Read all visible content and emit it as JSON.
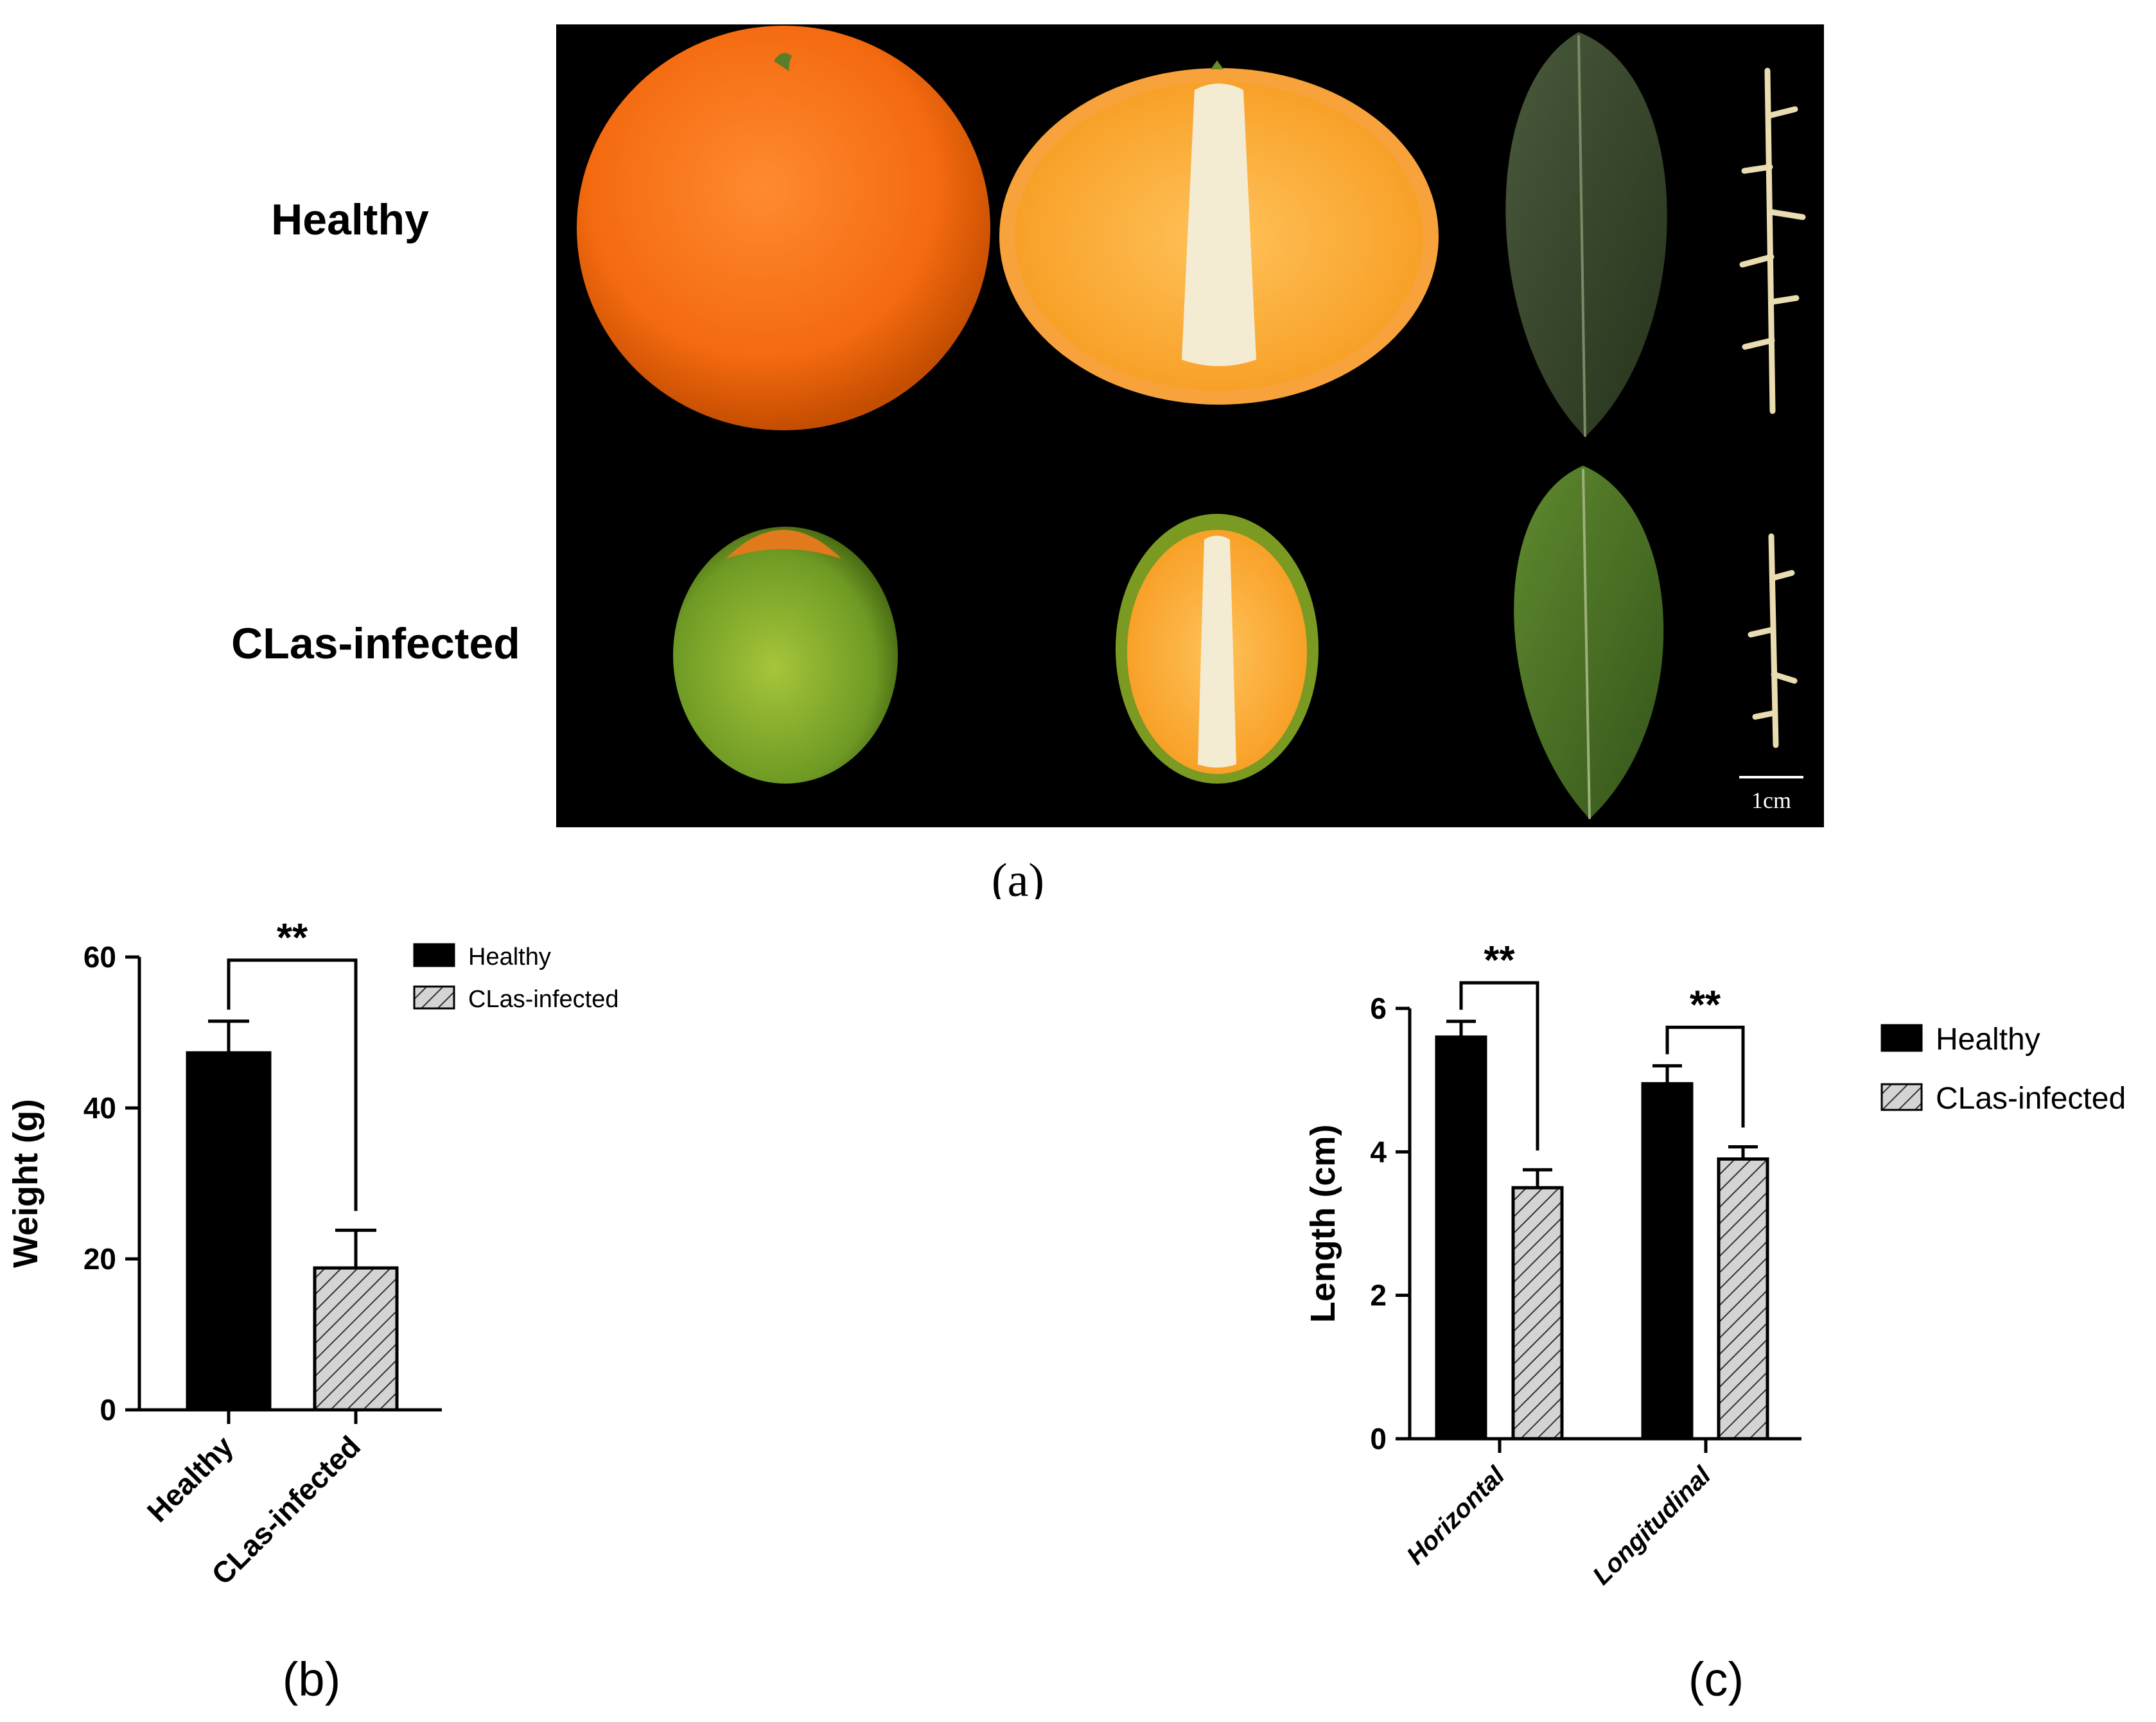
{
  "panel_a": {
    "label": "(a)",
    "row_labels": [
      "Healthy",
      "CLas-infected"
    ],
    "scale_bar_label": "1cm"
  },
  "chart_data": [
    {
      "panel": "(b)",
      "type": "bar",
      "title": "",
      "xlabel": "",
      "ylabel": "Weight (g)",
      "categories": [
        "Healthy",
        "CLas-infected"
      ],
      "series": [
        {
          "name": "Healthy",
          "values": [
            47.3,
            null
          ],
          "errors": [
            4.2,
            null
          ],
          "pattern": "solid"
        },
        {
          "name": "CLas-infected",
          "values": [
            null,
            18.8
          ],
          "errors": [
            null,
            5.0
          ],
          "pattern": "hatched"
        }
      ],
      "ylim": [
        0,
        60
      ],
      "yticks": [
        0,
        20,
        40,
        60
      ],
      "significance": [
        {
          "between": [
            "Healthy",
            "CLas-infected"
          ],
          "label": "**"
        }
      ],
      "legend": {
        "entries": [
          "Healthy",
          "CLas-infected"
        ],
        "placement": "top-right outside"
      },
      "grid": false
    },
    {
      "panel": "(c)",
      "type": "bar",
      "title": "",
      "xlabel": "",
      "ylabel": "Length (cm)",
      "categories": [
        "Horizontal",
        "Longitudinal"
      ],
      "series": [
        {
          "name": "Healthy",
          "values": [
            5.6,
            4.95
          ],
          "errors": [
            0.22,
            0.25
          ],
          "pattern": "solid"
        },
        {
          "name": "CLas-infected",
          "values": [
            3.5,
            3.9
          ],
          "errors": [
            0.25,
            0.17
          ],
          "pattern": "hatched"
        }
      ],
      "ylim": [
        0,
        6
      ],
      "yticks": [
        0,
        2,
        4,
        6
      ],
      "significance": [
        {
          "category": "Horizontal",
          "label": "**"
        },
        {
          "category": "Longitudinal",
          "label": "**"
        }
      ],
      "legend": {
        "entries": [
          "Healthy",
          "CLas-infected"
        ],
        "placement": "top-right outside"
      },
      "grid": false
    }
  ],
  "colors": {
    "healthy_fill": "#000000",
    "infected_fill": "#d4d4d4",
    "hatch": "#333333",
    "photo_bg": "#000000"
  }
}
